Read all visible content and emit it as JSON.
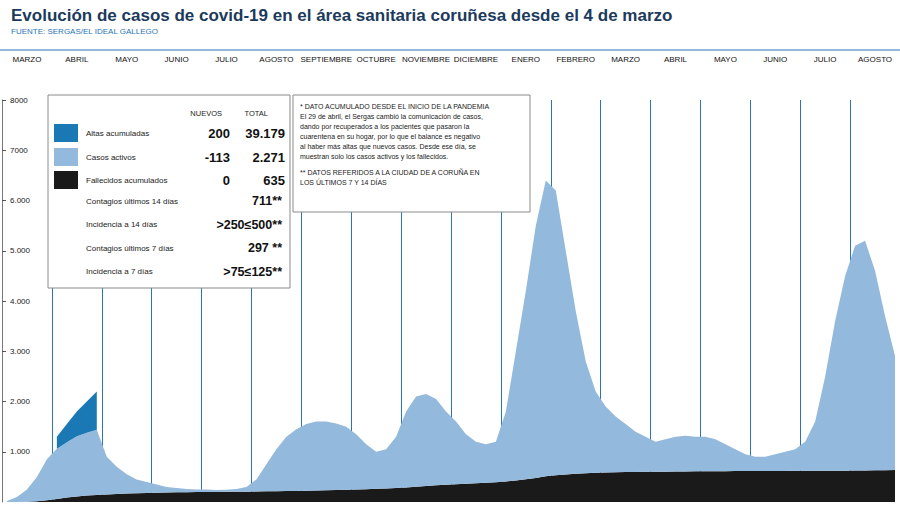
{
  "chart_data": {
    "type": "area",
    "title": "Evolución de casos de covid-19 en el área sanitaria coruñesa desde el 4 de marzo",
    "subtitle": "FUENTE: SERGAS/EL IDEAL GALLEGO",
    "categories": [
      null,
      null,
      "MARZO",
      null,
      null,
      null,
      null,
      "ABRIL",
      null,
      null,
      null,
      null,
      "MAYO",
      null,
      null,
      null,
      null,
      "JUNIO",
      null,
      null,
      null,
      null,
      "JULIO",
      null,
      null,
      null,
      null,
      "AGOSTO",
      null,
      null,
      null,
      null,
      "SEPTIEMBRE",
      null,
      null,
      null,
      null,
      "OCTUBRE",
      null,
      null,
      null,
      null,
      "NOVIEMBRE",
      null,
      null,
      null,
      null,
      "DICIEMBRE",
      null,
      null,
      null,
      null,
      "ENERO",
      null,
      null,
      null,
      null,
      "FEBRERO",
      null,
      null,
      null,
      null,
      "MARZO",
      null,
      null,
      null,
      null,
      "ABRIL",
      null,
      null,
      null,
      null,
      "MAYO",
      null,
      null,
      null,
      null,
      "JUNIO",
      null,
      null,
      null,
      null,
      "JULIO",
      null,
      null,
      null,
      null,
      "AGOSTO",
      null,
      null
    ],
    "series": [
      {
        "name": "Fallecidos acumulados",
        "color": "#1a1a1a",
        "values": [
          0,
          0,
          5,
          15,
          35,
          60,
          90,
          110,
          130,
          140,
          150,
          160,
          170,
          175,
          180,
          185,
          190,
          195,
          195,
          200,
          200,
          201,
          202,
          203,
          205,
          210,
          212,
          215,
          218,
          220,
          225,
          230,
          235,
          240,
          245,
          250,
          255,
          262,
          270,
          280,
          290,
          305,
          320,
          335,
          345,
          355,
          365,
          375,
          385,
          395,
          410,
          430,
          455,
          480,
          510,
          530,
          545,
          560,
          570,
          580,
          585,
          590,
          595,
          598,
          600,
          602,
          604,
          606,
          608,
          610,
          612,
          613,
          614,
          615,
          616,
          617,
          618,
          619,
          619,
          620,
          620,
          621,
          622,
          623,
          624,
          626,
          628,
          630,
          633,
          635
        ]
      },
      {
        "name": "Casos activos",
        "color": "#93b9dc",
        "values": [
          20,
          100,
          245,
          485,
          815,
          1000,
          1100,
          1200,
          1250,
          1300,
          750,
          540,
          380,
          275,
          220,
          165,
          110,
          85,
          65,
          50,
          50,
          40,
          40,
          55,
          95,
          240,
          538,
          835,
          1082,
          1230,
          1325,
          1370,
          1365,
          1320,
          1255,
          1100,
          895,
          738,
          780,
          1020,
          1510,
          1795,
          1830,
          1715,
          1455,
          1245,
          985,
          825,
          765,
          805,
          1390,
          2570,
          3745,
          5020,
          5890,
          5670,
          4455,
          3240,
          2230,
          1620,
          1315,
          1110,
          955,
          802,
          700,
          598,
          646,
          694,
          712,
          690,
          688,
          637,
          536,
          435,
          334,
          283,
          282,
          331,
          381,
          430,
          580,
          979,
          1878,
          2977,
          3876,
          4474,
          4572,
          3970,
          3067,
          2271
        ]
      },
      {
        "name": "Altas acumuladas",
        "color": "#1a78b4",
        "values": [
          null,
          null,
          null,
          null,
          null,
          240,
          360,
          490,
          620,
          760,
          null,
          null,
          null,
          null,
          null,
          null,
          null,
          null,
          null,
          null,
          null,
          null,
          null,
          null,
          null,
          null,
          null,
          null,
          null,
          null,
          null,
          null,
          null,
          null,
          null,
          null,
          null,
          null,
          null,
          null,
          null,
          null,
          null,
          null,
          null,
          null,
          null,
          null,
          null,
          null,
          null,
          null,
          null,
          null,
          null,
          null,
          null,
          null,
          null,
          null,
          null,
          null,
          null,
          null,
          null,
          null,
          null,
          null,
          null,
          null,
          null,
          null,
          null,
          null,
          null,
          null,
          null,
          null,
          null,
          null,
          null,
          null,
          null,
          null,
          null,
          null,
          null,
          null,
          null,
          null
        ]
      }
    ],
    "stacked": true,
    "grid": false,
    "ylim": [
      0,
      8000
    ],
    "yticks": [
      {
        "value": 1000,
        "label": "1.000"
      },
      {
        "value": 2000,
        "label": "2.000"
      },
      {
        "value": 3000,
        "label": "3.000"
      },
      {
        "value": 4000,
        "label": "4.000"
      },
      {
        "value": 5000,
        "label": "5.000"
      },
      {
        "value": 6000,
        "label": "6.000"
      },
      7000,
      8000
    ],
    "info_table": {
      "headers": [
        "NUEVOS",
        "TOTAL"
      ],
      "rows": [
        {
          "name": "Altas acumuladas",
          "new": "200",
          "total": "39.179"
        },
        {
          "name": "Casos activos",
          "new": "-113",
          "total": "2.271"
        },
        {
          "name": "Fallecidos acumulados",
          "new": "0",
          "total": "635"
        }
      ],
      "extra_rows": [
        {
          "label": "Contagios últimos 14 días",
          "value": "711**"
        },
        {
          "label": "Incidencia a 14 días",
          "value": ">250≤500**"
        },
        {
          "label": "Contagios últimos 7 días",
          "value": "297 **"
        },
        {
          "label": "Incidencia a 7 días",
          "value": ">75≤125**"
        }
      ]
    },
    "note": {
      "paragraphs": [
        [
          "* DATO ACUMULADO DESDE EL INICIO DE LA PANDEMIA",
          "El 29 de abril, el Sergas cambió la comunicación de casos,",
          "dando por recuperados a los pacientes que pasaron la",
          "cuarentena en su hogar, por lo que el balance es negativo",
          "al haber más altas que nuevos casos. Desde ese día, se",
          "muestran solo los casos activos y los fallecidos."
        ],
        [
          "** DATOS REFERIDOS A LA CIUDAD DE A CORUÑA EN",
          "LOS ÚLTIMOS 7 Y 14 DÍAS"
        ]
      ]
    }
  }
}
